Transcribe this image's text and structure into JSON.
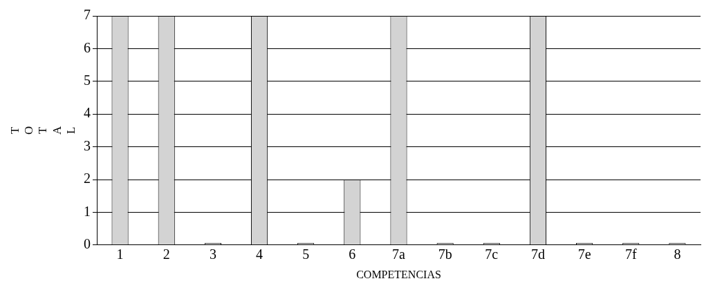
{
  "chart_data": {
    "type": "bar",
    "xlabel": "COMPETENCIAS",
    "ylabel": "TOTAL",
    "categories": [
      "1",
      "2",
      "3",
      "4",
      "5",
      "6",
      "7a",
      "7b",
      "7c",
      "7d",
      "7e",
      "7f",
      "8"
    ],
    "values": [
      7,
      7,
      0,
      7,
      0,
      2,
      7,
      0,
      0,
      7,
      0,
      0,
      0
    ],
    "color": "#d3d3d3",
    "ylim": [
      0,
      7
    ],
    "yticks": [
      0,
      1,
      2,
      3,
      4,
      5,
      6,
      7
    ],
    "grid": "y"
  }
}
